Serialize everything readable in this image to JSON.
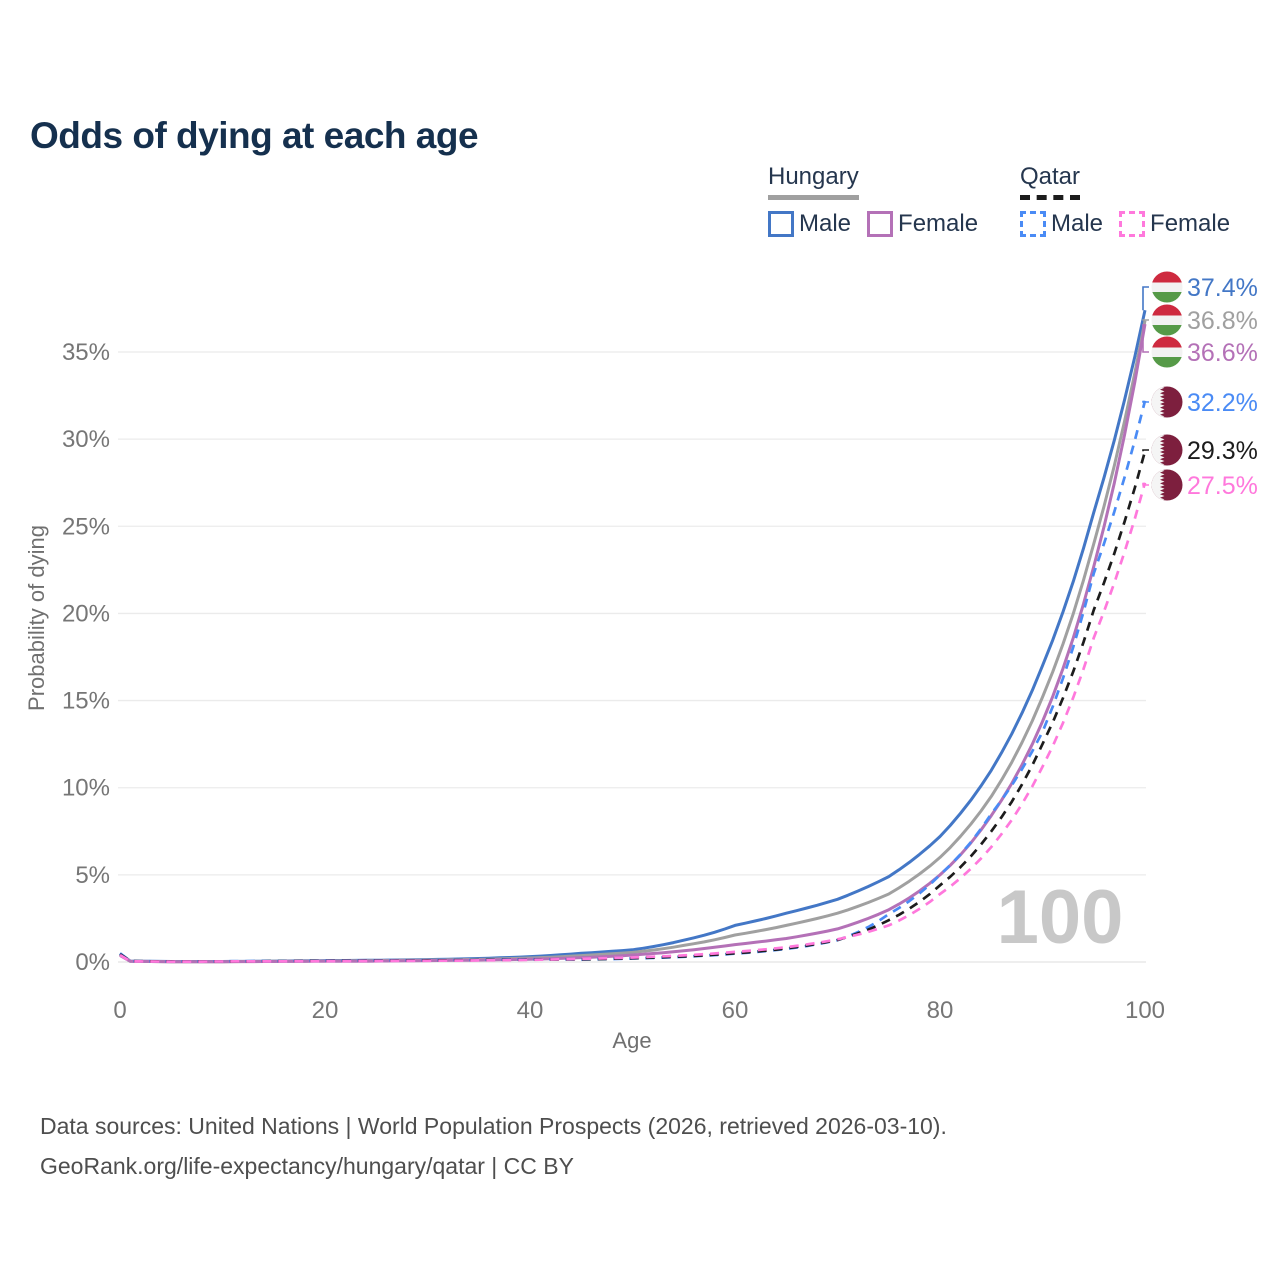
{
  "title": "Odds of dying at each age",
  "legend": {
    "groups": [
      {
        "label": "Hungary",
        "line_style": "solid",
        "underline_color": "#a0a0a0",
        "items": [
          {
            "label": "Male",
            "color": "#4377c6",
            "dashed": false
          },
          {
            "label": "Female",
            "color": "#b471b7",
            "dashed": false
          }
        ]
      },
      {
        "label": "Qatar",
        "line_style": "dashed",
        "underline_color": "#1c1c1c",
        "items": [
          {
            "label": "Male",
            "color": "#4a8bf5",
            "dashed": true
          },
          {
            "label": "Female",
            "color": "#ff78dc",
            "dashed": true
          }
        ]
      }
    ]
  },
  "chart_data": {
    "type": "line",
    "title": "Odds of dying at each age",
    "xlabel": "Age",
    "ylabel": "Probability of dying",
    "unit": "percent",
    "xlim": [
      0,
      100
    ],
    "ylim": [
      0,
      35
    ],
    "grid": true,
    "legend_position": "top-right",
    "watermark": "100",
    "x_ticks": [
      {
        "value": 0,
        "label": "0"
      },
      {
        "value": 20,
        "label": "20"
      },
      {
        "value": 40,
        "label": "40"
      },
      {
        "value": 60,
        "label": "60"
      },
      {
        "value": 80,
        "label": "80"
      },
      {
        "value": 100,
        "label": "100"
      }
    ],
    "y_ticks": [
      {
        "value": 0,
        "label": "0%"
      },
      {
        "value": 5,
        "label": "5%"
      },
      {
        "value": 10,
        "label": "10%"
      },
      {
        "value": 15,
        "label": "15%"
      },
      {
        "value": 20,
        "label": "20%"
      },
      {
        "value": 25,
        "label": "25%"
      },
      {
        "value": 30,
        "label": "30%"
      },
      {
        "value": 35,
        "label": "35%"
      }
    ],
    "ages": [
      0,
      1,
      5,
      10,
      15,
      20,
      25,
      30,
      35,
      40,
      45,
      50,
      55,
      60,
      65,
      70,
      75,
      80,
      85,
      90,
      95,
      100
    ],
    "series": [
      {
        "name": "Hungary Male",
        "country": "Hungary",
        "sex": "male",
        "color": "#4377c6",
        "dashed": false,
        "flag": "hungary",
        "end_label": "37.4%",
        "values": [
          0.48,
          0.05,
          0.03,
          0.03,
          0.05,
          0.08,
          0.1,
          0.14,
          0.2,
          0.31,
          0.5,
          0.7,
          1.25,
          2.1,
          2.8,
          3.6,
          4.9,
          7.2,
          11.0,
          17.0,
          25.8,
          37.4
        ]
      },
      {
        "name": "Hungary Both sexes",
        "country": "Hungary",
        "sex": "both",
        "color": "#a0a0a0",
        "dashed": false,
        "flag": "hungary",
        "end_label": "36.8%",
        "values": [
          0.42,
          0.04,
          0.02,
          0.02,
          0.04,
          0.06,
          0.08,
          0.11,
          0.15,
          0.23,
          0.37,
          0.55,
          0.95,
          1.55,
          2.1,
          2.8,
          3.9,
          6.0,
          9.5,
          15.2,
          24.0,
          36.8
        ]
      },
      {
        "name": "Hungary Female",
        "country": "Hungary",
        "sex": "female",
        "color": "#b471b7",
        "dashed": false,
        "flag": "hungary",
        "end_label": "36.6%",
        "values": [
          0.38,
          0.04,
          0.02,
          0.02,
          0.03,
          0.04,
          0.05,
          0.08,
          0.11,
          0.16,
          0.25,
          0.4,
          0.65,
          1.0,
          1.35,
          1.9,
          3.0,
          5.0,
          8.4,
          13.8,
          22.7,
          36.6
        ]
      },
      {
        "name": "Qatar Male",
        "country": "Qatar",
        "sex": "male",
        "color": "#4a8bf5",
        "dashed": true,
        "flag": "qatar",
        "end_label": "32.2%",
        "values": [
          0.5,
          0.05,
          0.03,
          0.04,
          0.06,
          0.08,
          0.09,
          0.1,
          0.12,
          0.16,
          0.14,
          0.2,
          0.3,
          0.48,
          0.75,
          1.25,
          2.75,
          5.0,
          8.5,
          13.2,
          22.3,
          32.2
        ]
      },
      {
        "name": "Qatar Both sexes",
        "country": "Qatar",
        "sex": "both",
        "color": "#1c1c1c",
        "dashed": true,
        "flag": "qatar",
        "end_label": "29.3%",
        "values": [
          0.45,
          0.05,
          0.03,
          0.03,
          0.05,
          0.07,
          0.08,
          0.09,
          0.11,
          0.14,
          0.15,
          0.22,
          0.32,
          0.5,
          0.78,
          1.27,
          2.4,
          4.4,
          7.5,
          12.5,
          20.2,
          29.3
        ]
      },
      {
        "name": "Qatar Female",
        "country": "Qatar",
        "sex": "female",
        "color": "#ff78dc",
        "dashed": true,
        "flag": "qatar",
        "end_label": "27.5%",
        "values": [
          0.4,
          0.04,
          0.02,
          0.03,
          0.04,
          0.05,
          0.06,
          0.07,
          0.09,
          0.12,
          0.18,
          0.26,
          0.38,
          0.58,
          0.85,
          1.3,
          2.1,
          3.9,
          6.6,
          11.2,
          18.6,
          27.5
        ]
      }
    ]
  },
  "footer": {
    "line1": "Data sources: United Nations | World Population Prospects (2026, retrieved 2026-03-10).",
    "line2": "GeoRank.org/life-expectancy/hungary/qatar | CC BY"
  }
}
